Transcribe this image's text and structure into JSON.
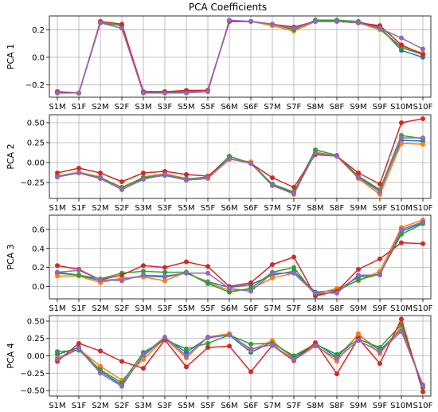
{
  "title": "PCA Coefficients",
  "colors": {
    "series": [
      "#1f77b4",
      "#ff7f0e",
      "#2ca02c",
      "#d62728",
      "#9467bd"
    ],
    "grid": "#b0b0b0",
    "axis": "#000000"
  },
  "chart_data": [
    {
      "type": "line",
      "ylabel": "PCA 1",
      "categories": [
        "S1M",
        "S1F",
        "S2M",
        "S2F",
        "S3M",
        "S3F",
        "S5M",
        "S5F",
        "S6M",
        "S6F",
        "S7M",
        "S7F",
        "S8M",
        "S8F",
        "S9M",
        "S9F",
        "S10M",
        "S10F"
      ],
      "ylim": [
        -0.29,
        0.3
      ],
      "yticks": [
        -0.2,
        0.0,
        0.2
      ],
      "ytick_labels": [
        "−0.2",
        "0.0",
        "0.2"
      ],
      "grid": true,
      "series": [
        {
          "values": [
            -0.25,
            -0.26,
            0.25,
            0.23,
            -0.25,
            -0.25,
            -0.25,
            -0.24,
            0.26,
            0.26,
            0.24,
            0.21,
            0.26,
            0.26,
            0.25,
            0.22,
            0.05,
            0.0
          ]
        },
        {
          "values": [
            -0.25,
            -0.26,
            0.25,
            0.23,
            -0.25,
            -0.25,
            -0.25,
            -0.24,
            0.26,
            0.26,
            0.23,
            0.19,
            0.26,
            0.26,
            0.25,
            0.2,
            0.08,
            0.03
          ]
        },
        {
          "values": [
            -0.25,
            -0.26,
            0.25,
            0.23,
            -0.25,
            -0.25,
            -0.25,
            -0.24,
            0.26,
            0.26,
            0.24,
            0.2,
            0.27,
            0.27,
            0.26,
            0.21,
            0.07,
            0.02
          ]
        },
        {
          "values": [
            -0.25,
            -0.26,
            0.26,
            0.24,
            -0.25,
            -0.25,
            -0.24,
            -0.24,
            0.26,
            0.26,
            0.24,
            0.22,
            0.26,
            0.26,
            0.25,
            0.23,
            0.09,
            0.02
          ]
        },
        {
          "values": [
            -0.26,
            -0.26,
            0.25,
            0.21,
            -0.26,
            -0.26,
            -0.26,
            -0.25,
            0.27,
            0.26,
            0.24,
            0.21,
            0.26,
            0.26,
            0.25,
            0.21,
            0.14,
            0.06
          ]
        }
      ]
    },
    {
      "type": "line",
      "ylabel": "PCA 2",
      "categories": [
        "S1M",
        "S1F",
        "S2M",
        "S2F",
        "S3M",
        "S3F",
        "S5M",
        "S5F",
        "S6M",
        "S6F",
        "S7M",
        "S7F",
        "S8M",
        "S8F",
        "S9M",
        "S9F",
        "S10M",
        "S10F"
      ],
      "ylim": [
        -0.45,
        0.6
      ],
      "yticks": [
        -0.25,
        0.0,
        0.25,
        0.5
      ],
      "ytick_labels": [
        "−0.25",
        "0.00",
        "0.25",
        "0.50"
      ],
      "grid": true,
      "series": [
        {
          "values": [
            -0.18,
            -0.13,
            -0.2,
            -0.33,
            -0.2,
            -0.16,
            -0.22,
            -0.2,
            0.05,
            -0.01,
            -0.28,
            -0.38,
            0.13,
            0.08,
            -0.18,
            -0.35,
            0.28,
            0.27
          ]
        },
        {
          "values": [
            -0.17,
            -0.12,
            -0.18,
            -0.33,
            -0.18,
            -0.14,
            -0.2,
            -0.2,
            0.04,
            0.01,
            -0.28,
            -0.4,
            0.13,
            0.08,
            -0.2,
            -0.4,
            0.24,
            0.23
          ]
        },
        {
          "values": [
            -0.17,
            -0.13,
            -0.19,
            -0.31,
            -0.19,
            -0.15,
            -0.21,
            -0.18,
            0.08,
            -0.01,
            -0.27,
            -0.37,
            0.16,
            0.09,
            -0.17,
            -0.34,
            0.34,
            0.3
          ]
        },
        {
          "values": [
            -0.13,
            -0.07,
            -0.13,
            -0.24,
            -0.13,
            -0.11,
            -0.15,
            -0.17,
            0.05,
            -0.01,
            -0.19,
            -0.31,
            0.1,
            0.08,
            -0.13,
            -0.27,
            0.5,
            0.55
          ]
        },
        {
          "values": [
            -0.18,
            -0.13,
            -0.2,
            -0.34,
            -0.21,
            -0.15,
            -0.22,
            -0.19,
            0.05,
            -0.01,
            -0.29,
            -0.39,
            0.12,
            0.08,
            -0.19,
            -0.37,
            0.31,
            0.31
          ]
        }
      ]
    },
    {
      "type": "line",
      "ylabel": "PCA 3",
      "categories": [
        "S1M",
        "S1F",
        "S2M",
        "S2F",
        "S3M",
        "S3F",
        "S5M",
        "S5F",
        "S6M",
        "S6F",
        "S7M",
        "S7F",
        "S8M",
        "S8F",
        "S9M",
        "S9F",
        "S10M",
        "S10F"
      ],
      "ylim": [
        -0.13,
        0.75
      ],
      "yticks": [
        0.0,
        0.2,
        0.4,
        0.6
      ],
      "ytick_labels": [
        "0.0",
        "0.2",
        "0.4",
        "0.6"
      ],
      "grid": true,
      "series": [
        {
          "values": [
            0.14,
            0.12,
            0.06,
            0.08,
            0.11,
            0.1,
            0.14,
            0.05,
            -0.01,
            0.02,
            0.12,
            0.16,
            -0.06,
            -0.04,
            0.1,
            0.13,
            0.58,
            0.67
          ]
        },
        {
          "values": [
            0.11,
            0.11,
            0.04,
            0.09,
            0.1,
            0.06,
            0.15,
            0.04,
            -0.04,
            -0.03,
            0.09,
            0.14,
            -0.08,
            -0.02,
            0.06,
            0.16,
            0.62,
            0.7
          ]
        },
        {
          "values": [
            0.15,
            0.12,
            0.08,
            0.14,
            0.16,
            0.15,
            0.15,
            0.03,
            -0.06,
            -0.02,
            0.15,
            0.2,
            -0.09,
            -0.05,
            0.07,
            0.13,
            0.55,
            0.66
          ]
        },
        {
          "values": [
            0.22,
            0.18,
            0.07,
            0.12,
            0.22,
            0.2,
            0.26,
            0.21,
            0.0,
            0.04,
            0.23,
            0.31,
            -0.1,
            -0.05,
            0.18,
            0.29,
            0.46,
            0.45
          ]
        },
        {
          "values": [
            0.15,
            0.17,
            0.07,
            0.06,
            0.12,
            0.11,
            0.14,
            0.14,
            -0.02,
            -0.05,
            0.14,
            0.14,
            -0.07,
            -0.07,
            0.12,
            0.12,
            0.6,
            0.68
          ]
        }
      ]
    },
    {
      "type": "line",
      "ylabel": "PCA 4",
      "categories": [
        "S1M",
        "S1F",
        "S2M",
        "S2F",
        "S3M",
        "S3F",
        "S5M",
        "S5F",
        "S6M",
        "S6F",
        "S7M",
        "S7F",
        "S8M",
        "S8F",
        "S9M",
        "S9F",
        "S10M",
        "S10F"
      ],
      "ylim": [
        -0.58,
        0.58
      ],
      "yticks": [
        -0.5,
        -0.25,
        0.0,
        0.25,
        0.5
      ],
      "ytick_labels": [
        "−0.50",
        "−0.25",
        "0.00",
        "0.25",
        "0.50"
      ],
      "grid": true,
      "series": [
        {
          "values": [
            0.02,
            0.12,
            -0.22,
            -0.42,
            0.0,
            0.26,
            0.05,
            0.26,
            0.3,
            0.05,
            0.2,
            -0.03,
            0.18,
            -0.02,
            0.3,
            0.08,
            0.38,
            -0.42
          ]
        },
        {
          "values": [
            -0.03,
            0.1,
            -0.15,
            -0.35,
            -0.05,
            0.25,
            -0.03,
            0.27,
            0.32,
            0.08,
            0.22,
            -0.05,
            0.16,
            -0.08,
            0.32,
            0.03,
            0.42,
            -0.45
          ]
        },
        {
          "values": [
            0.06,
            0.08,
            -0.2,
            -0.39,
            0.05,
            0.23,
            0.1,
            0.18,
            0.3,
            0.17,
            0.18,
            0.0,
            0.17,
            0.02,
            0.24,
            0.12,
            0.45,
            -0.46
          ]
        },
        {
          "values": [
            -0.08,
            0.18,
            0.07,
            -0.08,
            -0.18,
            0.23,
            -0.16,
            0.12,
            0.14,
            -0.23,
            0.15,
            -0.07,
            0.19,
            -0.26,
            0.25,
            -0.11,
            0.53,
            -0.52
          ]
        },
        {
          "values": [
            -0.05,
            0.1,
            -0.25,
            -0.44,
            0.02,
            0.27,
            0.0,
            0.27,
            0.3,
            0.1,
            0.16,
            -0.06,
            0.14,
            -0.04,
            0.22,
            0.06,
            0.35,
            -0.43
          ]
        }
      ]
    }
  ]
}
